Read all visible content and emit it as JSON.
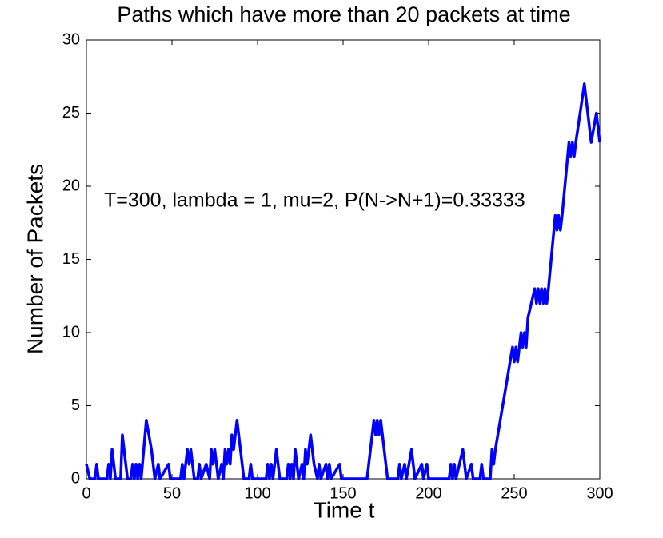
{
  "chart_data": {
    "type": "line",
    "title": "Paths which have more than 20 packets at time",
    "xlabel": "Time t",
    "ylabel": "Number of Packets",
    "annotation": "T=300, lambda = 1, mu=2, P(N->N+1)=0.33333",
    "xlim": [
      0,
      300
    ],
    "ylim": [
      0,
      30
    ],
    "xticks": [
      0,
      50,
      100,
      150,
      200,
      250,
      300
    ],
    "yticks": [
      0,
      5,
      10,
      15,
      20,
      25,
      30
    ],
    "series": [
      {
        "color": "#0000ff",
        "x": [
          0,
          2,
          5,
          6,
          7,
          12,
          13,
          14,
          15,
          17,
          20,
          21,
          23,
          24,
          26,
          27,
          28,
          29,
          30,
          31,
          32,
          35,
          38,
          40,
          42,
          43,
          48,
          49,
          55,
          56,
          57,
          59,
          60,
          61,
          63,
          65,
          66,
          67,
          70,
          72,
          73,
          74,
          75,
          77,
          79,
          80,
          81,
          82,
          83,
          84,
          85,
          86,
          88,
          90,
          92,
          95,
          96,
          97,
          105,
          106,
          107,
          108,
          109,
          111,
          113,
          117,
          118,
          119,
          120,
          121,
          122,
          124,
          126,
          127,
          128,
          129,
          131,
          133,
          135,
          136,
          137,
          140,
          141,
          142,
          143,
          148,
          149,
          164,
          168,
          169,
          170,
          171,
          172,
          173,
          176,
          182,
          183,
          184,
          186,
          187,
          190,
          192,
          196,
          197,
          199,
          200,
          212,
          213,
          214,
          215,
          216,
          220,
          222,
          225,
          226,
          230,
          231,
          232,
          236,
          237,
          238,
          239,
          249,
          250,
          251,
          252,
          253,
          254,
          255,
          256,
          257,
          258,
          262,
          263,
          264,
          265,
          266,
          267,
          268,
          269,
          270,
          274,
          275,
          276,
          277,
          278,
          282,
          283,
          284,
          285,
          286,
          291,
          295,
          298,
          300
        ],
        "values": [
          1,
          0,
          0,
          1,
          0,
          0,
          1,
          0,
          2,
          0,
          0,
          3,
          1,
          0,
          0,
          1,
          0,
          1,
          0,
          1,
          0,
          4,
          2,
          0,
          1,
          0,
          1,
          0,
          0,
          1,
          0,
          2,
          1,
          2,
          0,
          0,
          1,
          0,
          1,
          0,
          2,
          1,
          2,
          0,
          1,
          0,
          2,
          1,
          2,
          1,
          3,
          2,
          4,
          2,
          0,
          0,
          1,
          0,
          0,
          1,
          0,
          1,
          0,
          2,
          0,
          0,
          1,
          0,
          1,
          0,
          2,
          0,
          1,
          0,
          2,
          1,
          3,
          1,
          0,
          1,
          0,
          1,
          0,
          1,
          0,
          1,
          0,
          0,
          4,
          3,
          4,
          3,
          4,
          3,
          0,
          0,
          1,
          0,
          1,
          0,
          2,
          0,
          1,
          0,
          1,
          0,
          0,
          1,
          0,
          1,
          0,
          2,
          0,
          1,
          0,
          0,
          1,
          0,
          0,
          2,
          1,
          2,
          9,
          8,
          9,
          8,
          9,
          10,
          9,
          10,
          9,
          11,
          13,
          12,
          13,
          12,
          13,
          12,
          13,
          12,
          13,
          18,
          17,
          18,
          17,
          18,
          23,
          22,
          23,
          22,
          23,
          27,
          23,
          25,
          23
        ]
      }
    ]
  }
}
